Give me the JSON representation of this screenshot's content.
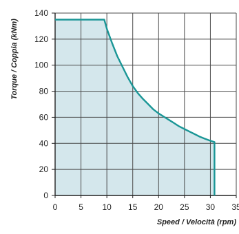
{
  "chart_data": {
    "type": "area",
    "title": "",
    "xlabel": "Speed / Velocità (rpm)",
    "ylabel": "Torque / Coppia (kNm)",
    "xlim": [
      0,
      35
    ],
    "ylim": [
      0,
      140
    ],
    "x_ticks": [
      0,
      5,
      10,
      15,
      20,
      25,
      30,
      35
    ],
    "y_ticks": [
      0,
      20,
      40,
      60,
      80,
      100,
      120,
      140
    ],
    "x_tick_labels": [
      "0",
      "5",
      "10",
      "15",
      "20",
      "25",
      "30",
      "35"
    ],
    "y_tick_labels": [
      "0",
      "20",
      "40",
      "60",
      "80",
      "100",
      "120",
      "140"
    ],
    "grid": true,
    "legend": "none",
    "series": [
      {
        "x": [
          0,
          9.5,
          10,
          11,
          12,
          13,
          14,
          15,
          16,
          17,
          18,
          19,
          20,
          21,
          22,
          23,
          24,
          25,
          26,
          27,
          28,
          29,
          30,
          30.8,
          30.8
        ],
        "y": [
          135,
          135,
          128,
          117,
          107,
          99,
          91,
          84,
          78.5,
          74,
          70,
          66,
          63,
          60.5,
          58,
          55.5,
          53,
          51,
          49,
          47,
          45,
          43.5,
          42,
          41,
          0
        ]
      }
    ],
    "colors": {
      "line": "#1a9696",
      "fill": "#d4e7ec",
      "grid": "#4a4a4a",
      "axis": "#222222"
    }
  }
}
